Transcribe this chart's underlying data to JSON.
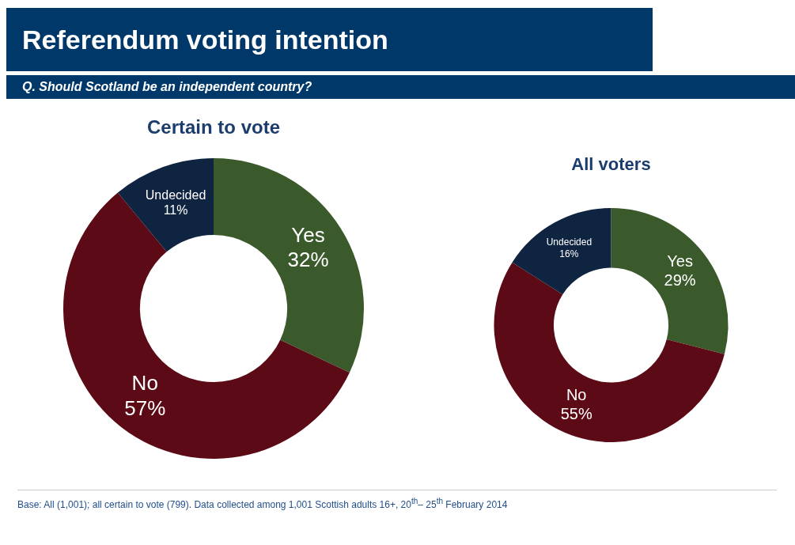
{
  "chart_data": [
    {
      "type": "other",
      "title": "Referendum voting intention",
      "subtitle": "Q. Should Scotland be an independent country?"
    },
    {
      "type": "donut",
      "title": "Certain to vote",
      "categories": [
        "Yes",
        "No",
        "Undecided"
      ],
      "values": [
        32,
        57,
        11
      ],
      "colors": [
        "#3b5a2b",
        "#5c0a16",
        "#0f2440"
      ],
      "value_labels": [
        "32%",
        "57%",
        "11%"
      ],
      "legend": false
    },
    {
      "type": "donut",
      "title": "All voters",
      "categories": [
        "Yes",
        "No",
        "Undecided"
      ],
      "values": [
        29,
        55,
        16
      ],
      "colors": [
        "#3b5a2b",
        "#5c0a16",
        "#0f2440"
      ],
      "value_labels": [
        "29%",
        "55%",
        "16%"
      ],
      "legend": false
    },
    {
      "type": "other",
      "annotations": [
        "Base: All (1,001); all certain to vote (799). Data collected among 1,001 Scottish adults 16+, 20$^{th}$– 25$^{th}$ February 2014"
      ]
    }
  ]
}
